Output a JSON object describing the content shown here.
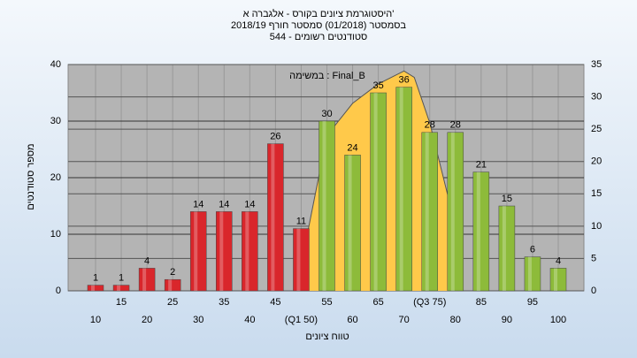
{
  "chart_data": {
    "type": "bar",
    "title": [
      "היסטוגרמת ציונים בקורס - אלגברה א'",
      "בסמסטר (01/2018) סמסטר חורף 2018/19",
      "544 - סטודנטים רשומים"
    ],
    "annotation": "במשימה : Final_B",
    "y_label": "מספר סטודנטים",
    "x_label": "טווח ציונים",
    "categories": [
      "10",
      "15",
      "20",
      "25",
      "30",
      "35",
      "40",
      "45",
      "(Q1 50)",
      "55",
      "60",
      "65",
      "70",
      "(Q3 75)",
      "80",
      "85",
      "90",
      "95",
      "100"
    ],
    "values": [
      1,
      1,
      4,
      2,
      14,
      14,
      14,
      26,
      11,
      30,
      24,
      35,
      36,
      28,
      28,
      21,
      15,
      6,
      4
    ],
    "colors": [
      "#d9262b",
      "#d9262b",
      "#d9262b",
      "#d9262b",
      "#d9262b",
      "#d9262b",
      "#d9262b",
      "#d9262b",
      "#d9262b",
      "#8dbb3a",
      "#8dbb3a",
      "#8dbb3a",
      "#8dbb3a",
      "#8dbb3a",
      "#8dbb3a",
      "#8dbb3a",
      "#8dbb3a",
      "#8dbb3a",
      "#8dbb3a"
    ],
    "ylim": [
      0,
      40
    ],
    "yticks": [
      0,
      10,
      20,
      30,
      40
    ],
    "y2lim": [
      0,
      35
    ],
    "y2ticks": [
      0,
      5,
      10,
      15,
      20,
      25,
      30,
      35
    ],
    "area": {
      "axis": "y2",
      "color": "#ffc94a",
      "x": [
        49,
        52,
        55,
        60,
        65,
        70,
        72,
        75,
        80
      ],
      "values": [
        0,
        12,
        24,
        29,
        32,
        34,
        33,
        26,
        10
      ]
    },
    "grid": true
  }
}
